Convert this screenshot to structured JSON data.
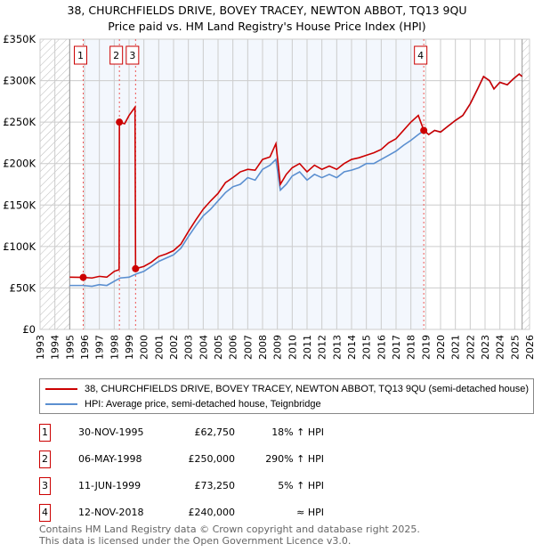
{
  "title_line1": "38, CHURCHFIELDS DRIVE, BOVEY TRACEY, NEWTON ABBOT, TQ13 9QU",
  "title_line2": "Price paid vs. HM Land Registry's House Price Index (HPI)",
  "chart_data": {
    "type": "line",
    "xlim": [
      1993,
      2026
    ],
    "ylim": [
      0,
      350000
    ],
    "x_ticks": [
      1993,
      1994,
      1995,
      1996,
      1997,
      1998,
      1999,
      2000,
      2001,
      2002,
      2003,
      2004,
      2005,
      2006,
      2007,
      2008,
      2009,
      2010,
      2011,
      2012,
      2013,
      2014,
      2015,
      2016,
      2017,
      2018,
      2019,
      2020,
      2021,
      2022,
      2023,
      2024,
      2025,
      2026
    ],
    "y_ticks": [
      {
        "v": 0,
        "label": "£0"
      },
      {
        "v": 50000,
        "label": "£50K"
      },
      {
        "v": 100000,
        "label": "£100K"
      },
      {
        "v": 150000,
        "label": "£150K"
      },
      {
        "v": 200000,
        "label": "£200K"
      },
      {
        "v": 250000,
        "label": "£250K"
      },
      {
        "v": 300000,
        "label": "£300K"
      },
      {
        "v": 350000,
        "label": "£350K"
      }
    ],
    "hatched_before": 1995,
    "hatched_after": 2025.5,
    "series": [
      {
        "name": "38, CHURCHFIELDS DRIVE, BOVEY TRACEY, NEWTON ABBOT, TQ13 9QU (semi-detached house)",
        "color": "#cc0000",
        "x": [
          1995.0,
          1995.9,
          1996.5,
          1997.0,
          1997.5,
          1998.0,
          1998.33,
          1998.35,
          1998.7,
          1999.0,
          1999.4,
          1999.44,
          2000.0,
          2000.5,
          2001.0,
          2001.5,
          2002.0,
          2002.5,
          2003.0,
          2003.5,
          2004.0,
          2004.5,
          2005.0,
          2005.5,
          2006.0,
          2006.5,
          2007.0,
          2007.5,
          2008.0,
          2008.5,
          2008.9,
          2009.2,
          2009.6,
          2010.0,
          2010.5,
          2011.0,
          2011.5,
          2012.0,
          2012.5,
          2013.0,
          2013.5,
          2014.0,
          2014.5,
          2015.0,
          2015.5,
          2016.0,
          2016.5,
          2017.0,
          2017.5,
          2018.0,
          2018.5,
          2018.87,
          2019.2,
          2019.6,
          2020.0,
          2020.5,
          2021.0,
          2021.5,
          2022.0,
          2022.5,
          2022.9,
          2023.3,
          2023.6,
          2024.0,
          2024.5,
          2024.9,
          2025.3,
          2025.5
        ],
        "y": [
          63000,
          62750,
          62000,
          64000,
          63000,
          70000,
          72000,
          250000,
          248000,
          258000,
          268000,
          73250,
          76000,
          81000,
          88000,
          91000,
          95000,
          103000,
          118000,
          132000,
          145000,
          155000,
          164000,
          177000,
          183000,
          190000,
          193000,
          192000,
          205000,
          208000,
          224000,
          175000,
          187000,
          195000,
          200000,
          190000,
          198000,
          193000,
          197000,
          193000,
          200000,
          205000,
          207000,
          210000,
          213000,
          217000,
          225000,
          230000,
          240000,
          250000,
          258000,
          240000,
          235000,
          240000,
          238000,
          245000,
          252000,
          258000,
          272000,
          290000,
          305000,
          300000,
          290000,
          298000,
          295000,
          302000,
          308000,
          305000
        ]
      },
      {
        "name": "HPI: Average price, semi-detached house, Teignbridge",
        "color": "#5b8fd0",
        "x": [
          1995.0,
          1995.9,
          1996.5,
          1997.0,
          1997.5,
          1998.0,
          1998.4,
          1999.0,
          1999.5,
          2000.0,
          2000.5,
          2001.0,
          2001.5,
          2002.0,
          2002.5,
          2003.0,
          2003.5,
          2004.0,
          2004.5,
          2005.0,
          2005.5,
          2006.0,
          2006.5,
          2007.0,
          2007.5,
          2008.0,
          2008.5,
          2008.9,
          2009.2,
          2009.6,
          2010.0,
          2010.5,
          2011.0,
          2011.5,
          2012.0,
          2012.5,
          2013.0,
          2013.5,
          2014.0,
          2014.5,
          2015.0,
          2015.5,
          2016.0,
          2016.5,
          2017.0,
          2017.5,
          2018.0,
          2018.5,
          2018.9,
          2019.2,
          2019.6,
          2020.0,
          2020.5,
          2021.0,
          2021.5,
          2022.0,
          2022.5,
          2022.9,
          2023.3,
          2023.6,
          2024.0,
          2024.5,
          2024.9,
          2025.3,
          2025.5
        ],
        "y": [
          53000,
          53000,
          52000,
          54000,
          53000,
          58000,
          62000,
          63000,
          67000,
          70000,
          76000,
          82000,
          86000,
          90000,
          98000,
          112000,
          125000,
          137000,
          145000,
          155000,
          165000,
          172000,
          175000,
          183000,
          180000,
          193000,
          198000,
          205000,
          168000,
          175000,
          185000,
          190000,
          180000,
          187000,
          183000,
          187000,
          183000,
          190000,
          192000,
          195000,
          200000,
          200000,
          205000,
          210000,
          215000,
          222000,
          228000,
          235000,
          240000,
          235000,
          240000,
          238000,
          245000,
          252000,
          258000,
          272000,
          290000,
          305000,
          300000,
          290000,
          298000,
          295000,
          302000,
          308000,
          305000
        ]
      }
    ],
    "sales": [
      {
        "id": "1",
        "x": 1995.91,
        "price": 62750,
        "date": "30-NOV-1995",
        "price_label": "£62,750",
        "vs_hpi": "18% ↑ HPI"
      },
      {
        "id": "2",
        "x": 1998.35,
        "price": 250000,
        "date": "06-MAY-1998",
        "price_label": "£250,000",
        "vs_hpi": "290% ↑ HPI"
      },
      {
        "id": "3",
        "x": 1999.44,
        "price": 73250,
        "date": "11-JUN-1999",
        "price_label": "£73,250",
        "vs_hpi": "5% ↑ HPI"
      },
      {
        "id": "4",
        "x": 2018.87,
        "price": 240000,
        "date": "12-NOV-2018",
        "price_label": "£240,000",
        "vs_hpi": "≈ HPI"
      }
    ]
  },
  "legend": {
    "red": "38, CHURCHFIELDS DRIVE, BOVEY TRACEY, NEWTON ABBOT, TQ13 9QU (semi-detached house)",
    "blue": "HPI: Average price, semi-detached house, Teignbridge"
  },
  "footer_line1": "Contains HM Land Registry data © Crown copyright and database right 2025.",
  "footer_line2": "This data is licensed under the Open Government Licence v3.0."
}
